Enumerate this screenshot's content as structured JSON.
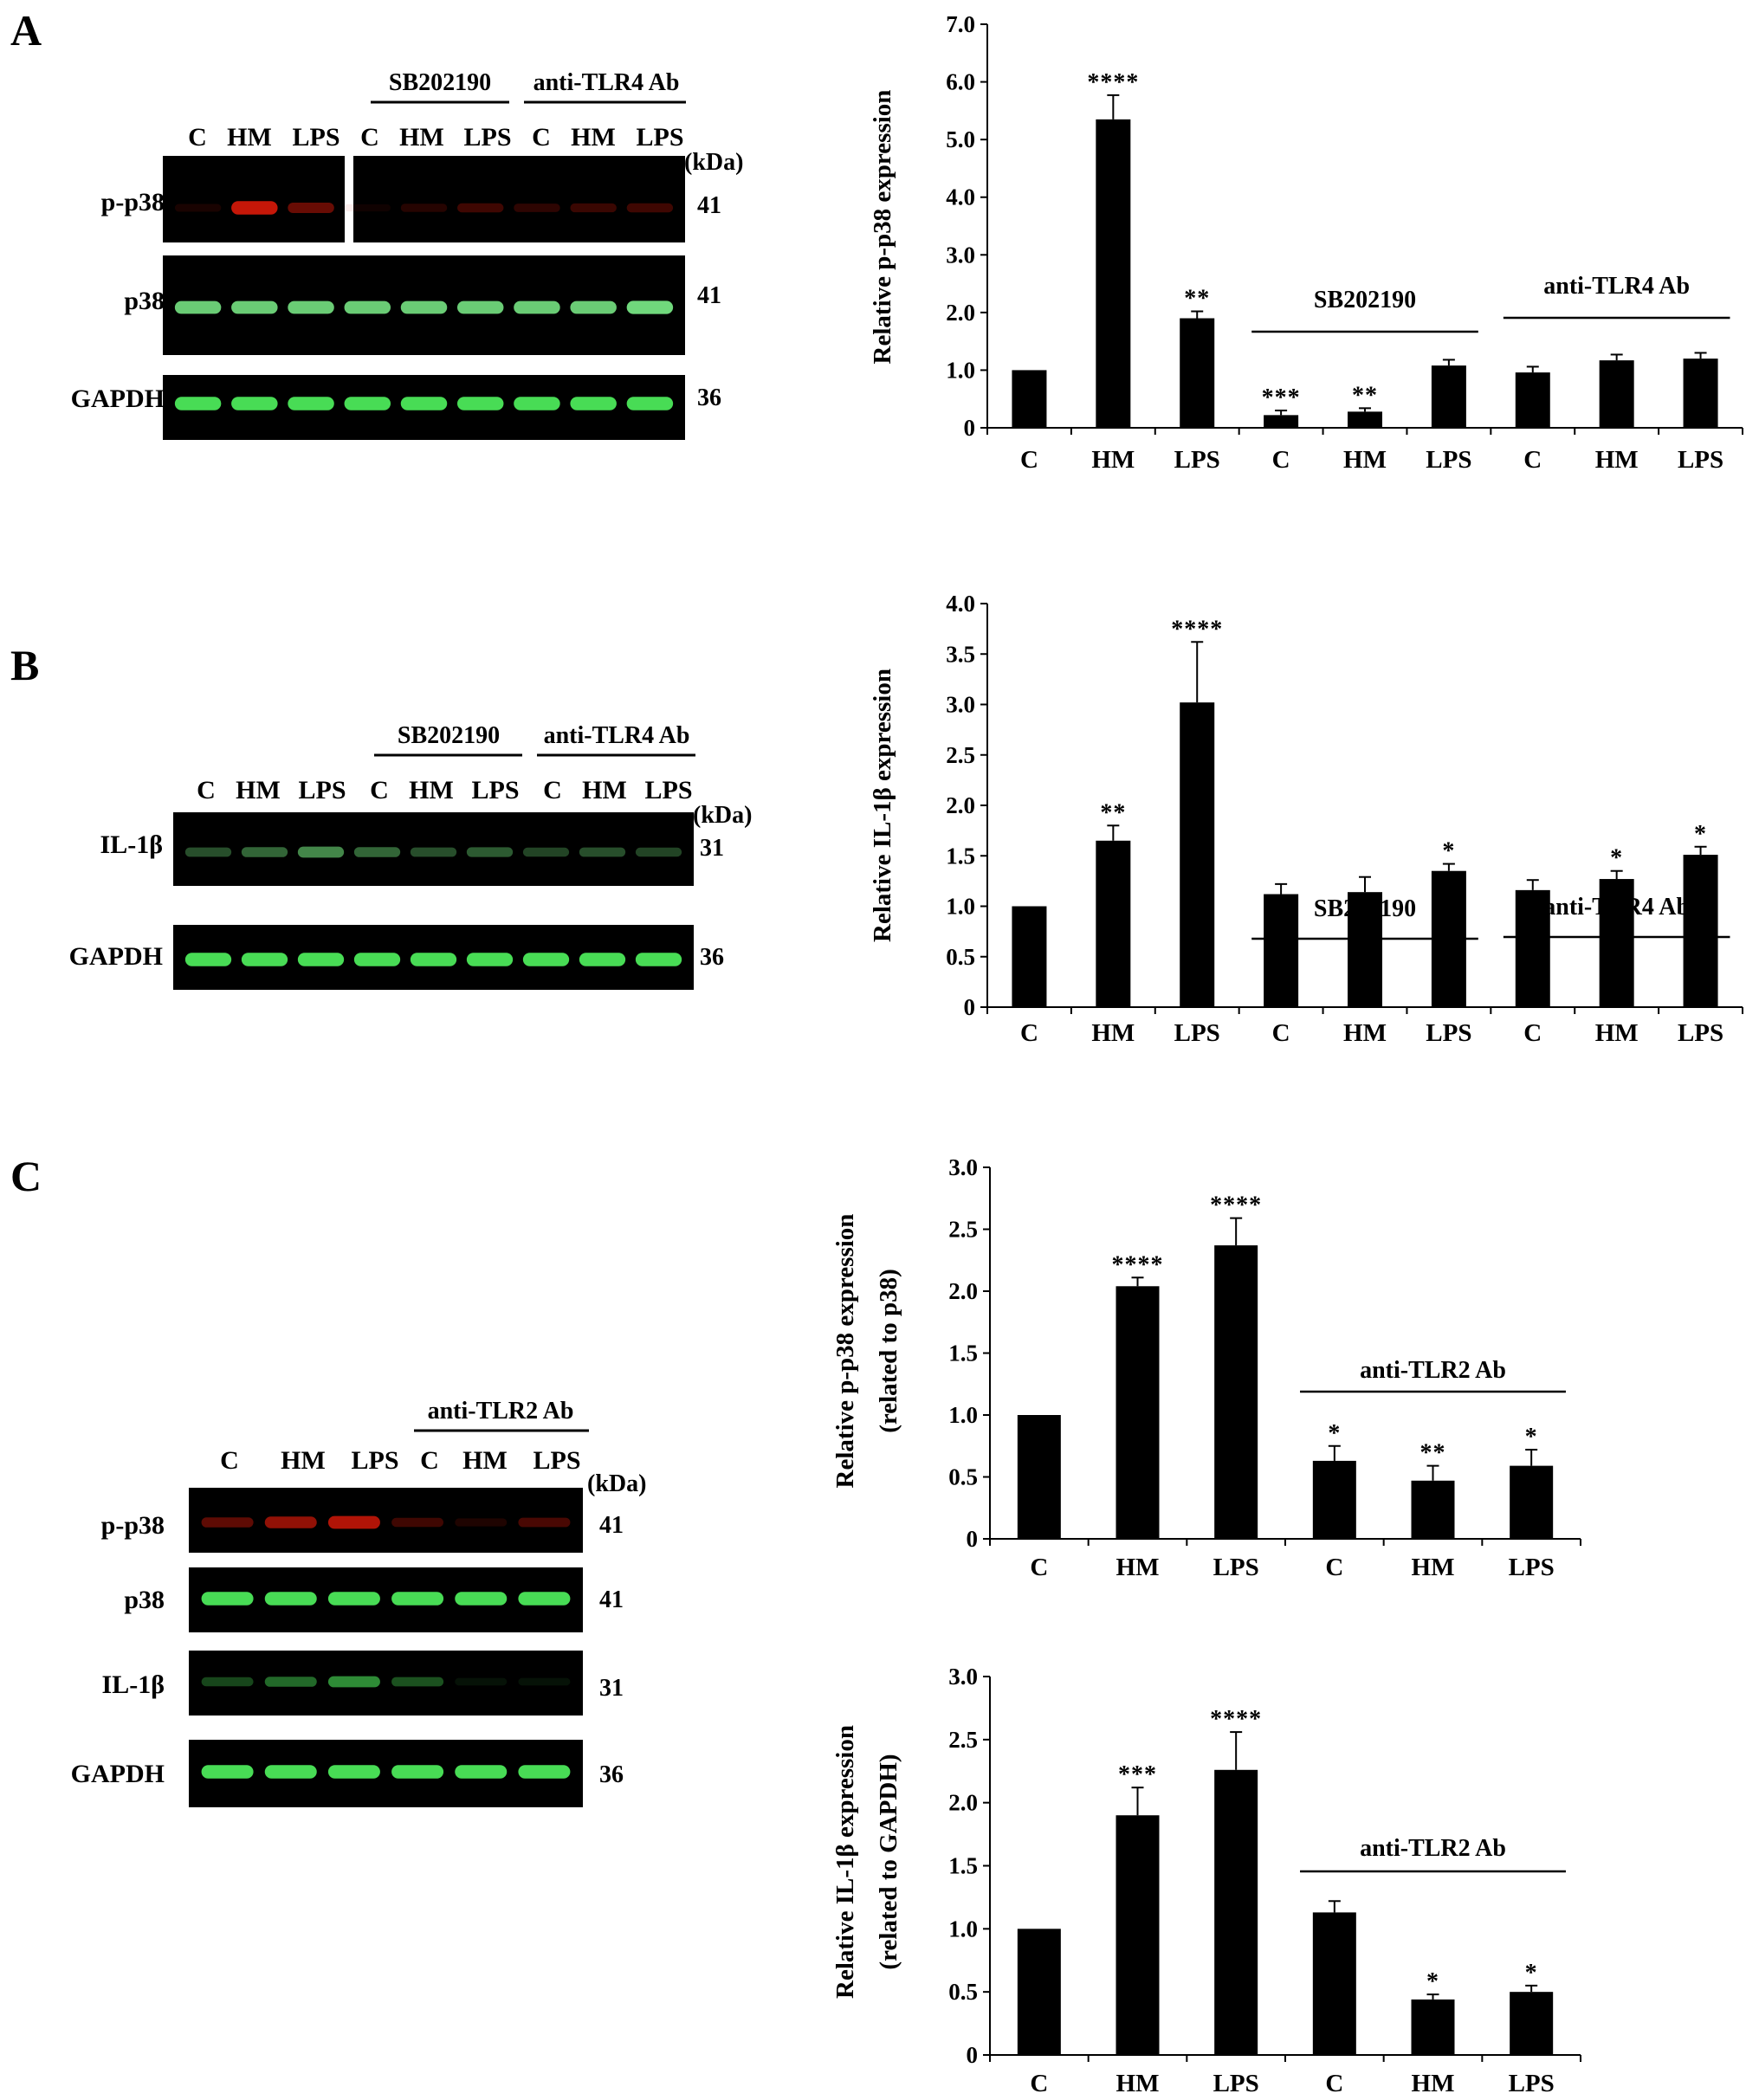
{
  "panel_letters": [
    "A",
    "B",
    "C"
  ],
  "kda_label": "(kDa)",
  "blots": {
    "A": {
      "lanes": [
        "C",
        "HM",
        "LPS",
        "C",
        "HM",
        "LPS",
        "C",
        "HM",
        "LPS"
      ],
      "groups": [
        "SB202190",
        "anti-TLR4 Ab"
      ],
      "rows": [
        {
          "label": "p-p38",
          "kda": "41",
          "color": "#d01808",
          "intensity": [
            0.12,
            0.95,
            0.5,
            0.02,
            0.18,
            0.3,
            0.22,
            0.28,
            0.3
          ]
        },
        {
          "label": "p38",
          "kda": "41",
          "color": "#7cf08a",
          "intensity": [
            0.85,
            0.85,
            0.85,
            0.85,
            0.85,
            0.85,
            0.85,
            0.85,
            0.9
          ]
        },
        {
          "label": "GAPDH",
          "kda": "36",
          "color": "#4ce85a",
          "intensity": [
            0.95,
            0.95,
            0.95,
            0.95,
            0.95,
            0.95,
            0.95,
            0.95,
            0.95
          ]
        }
      ]
    },
    "B": {
      "lanes": [
        "C",
        "HM",
        "LPS",
        "C",
        "HM",
        "LPS",
        "C",
        "HM",
        "LPS"
      ],
      "groups": [
        "SB202190",
        "anti-TLR4 Ab"
      ],
      "rows": [
        {
          "label": "IL-1β",
          "kda": "31",
          "color": "#6fe07a",
          "intensity": [
            0.35,
            0.45,
            0.6,
            0.45,
            0.35,
            0.4,
            0.3,
            0.35,
            0.3
          ]
        },
        {
          "label": "GAPDH",
          "kda": "36",
          "color": "#4ce85a",
          "intensity": [
            0.95,
            0.95,
            0.95,
            0.95,
            0.95,
            0.95,
            0.95,
            0.95,
            0.95
          ]
        }
      ]
    },
    "C": {
      "lanes": [
        "C",
        "HM",
        "LPS",
        "C",
        "HM",
        "LPS"
      ],
      "groups": [
        "anti-TLR2 Ab"
      ],
      "rows": [
        {
          "label": "p-p38",
          "kda": "41",
          "color": "#d01808",
          "intensity": [
            0.45,
            0.7,
            0.85,
            0.3,
            0.15,
            0.35
          ]
        },
        {
          "label": "p38",
          "kda": "41",
          "color": "#4ce85a",
          "intensity": [
            0.95,
            0.95,
            0.95,
            0.95,
            0.95,
            0.95
          ]
        },
        {
          "label": "IL-1β",
          "kda": "31",
          "color": "#4ce85a",
          "intensity": [
            0.3,
            0.45,
            0.6,
            0.35,
            0.08,
            0.08
          ]
        },
        {
          "label": "GAPDH",
          "kda": "36",
          "color": "#4ce85a",
          "intensity": [
            0.95,
            0.95,
            0.95,
            0.95,
            0.95,
            0.95
          ]
        }
      ]
    }
  },
  "chart_data": [
    {
      "type": "bar",
      "panel": "A",
      "title": "",
      "xlabel": "",
      "ylabel": "Relative p-p38 expression",
      "ylabel2": "",
      "categories": [
        "C",
        "HM",
        "LPS",
        "C",
        "HM",
        "LPS",
        "C",
        "HM",
        "LPS"
      ],
      "values": [
        1.0,
        5.35,
        1.9,
        0.22,
        0.28,
        1.08,
        0.96,
        1.17,
        1.2
      ],
      "errors": [
        0,
        0.42,
        0.12,
        0.08,
        0.06,
        0.1,
        0.1,
        0.1,
        0.1
      ],
      "significance": [
        "",
        "****",
        "**",
        "***",
        "**",
        "",
        "",
        "",
        ""
      ],
      "groups": [
        {
          "label": "SB202190",
          "start": 3,
          "end": 5
        },
        {
          "label": "anti-TLR4 Ab",
          "start": 6,
          "end": 8
        }
      ],
      "yticks": [
        "0",
        "1.0",
        "2.0",
        "3.0",
        "4.0",
        "5.0",
        "6.0",
        "7.0"
      ],
      "ylim": [
        0,
        7
      ],
      "grid": false,
      "bar_color": "#000000"
    },
    {
      "type": "bar",
      "panel": "B",
      "title": "",
      "xlabel": "",
      "ylabel": "Relative IL-1β expression",
      "ylabel2": "",
      "categories": [
        "C",
        "HM",
        "LPS",
        "C",
        "HM",
        "LPS",
        "C",
        "HM",
        "LPS"
      ],
      "values": [
        1.0,
        1.65,
        3.02,
        1.12,
        1.14,
        1.35,
        1.16,
        1.27,
        1.51
      ],
      "errors": [
        0,
        0.15,
        0.6,
        0.1,
        0.15,
        0.07,
        0.1,
        0.08,
        0.08
      ],
      "significance": [
        "",
        "**",
        "****",
        "",
        "",
        "*",
        "",
        "*",
        "*"
      ],
      "groups": [
        {
          "label": "SB202190",
          "start": 3,
          "end": 5
        },
        {
          "label": "anti-TLR4 Ab",
          "start": 6,
          "end": 8
        }
      ],
      "yticks": [
        "0",
        "0.5",
        "1.0",
        "1.5",
        "2.0",
        "2.5",
        "3.0",
        "3.5",
        "4.0"
      ],
      "ylim": [
        0,
        4
      ],
      "grid": false,
      "bar_color": "#000000"
    },
    {
      "type": "bar",
      "panel": "C-top",
      "title": "",
      "xlabel": "",
      "ylabel": "Relative p-p38 expression",
      "ylabel2": "(related to p38)",
      "categories": [
        "C",
        "HM",
        "LPS",
        "C",
        "HM",
        "LPS"
      ],
      "values": [
        1.0,
        2.04,
        2.37,
        0.63,
        0.47,
        0.59
      ],
      "errors": [
        0,
        0.07,
        0.22,
        0.12,
        0.12,
        0.13
      ],
      "significance": [
        "",
        "****",
        "****",
        "*",
        "**",
        "*"
      ],
      "groups": [
        {
          "label": "anti-TLR2 Ab",
          "start": 3,
          "end": 5
        }
      ],
      "yticks": [
        "0",
        "0.5",
        "1.0",
        "1.5",
        "2.0",
        "2.5",
        "3.0"
      ],
      "ylim": [
        0,
        3
      ],
      "grid": false,
      "bar_color": "#000000"
    },
    {
      "type": "bar",
      "panel": "C-bottom",
      "title": "",
      "xlabel": "",
      "ylabel": "Relative IL-1β expression",
      "ylabel2": "(related to GAPDH)",
      "categories": [
        "C",
        "HM",
        "LPS",
        "C",
        "HM",
        "LPS"
      ],
      "values": [
        1.0,
        1.9,
        2.26,
        1.13,
        0.44,
        0.5
      ],
      "errors": [
        0,
        0.22,
        0.3,
        0.09,
        0.04,
        0.05
      ],
      "significance": [
        "",
        "***",
        "****",
        "",
        "*",
        "*"
      ],
      "groups": [
        {
          "label": "anti-TLR2 Ab",
          "start": 3,
          "end": 5
        }
      ],
      "yticks": [
        "0",
        "0.5",
        "1.0",
        "1.5",
        "2.0",
        "2.5",
        "3.0"
      ],
      "ylim": [
        0,
        3
      ],
      "grid": false,
      "bar_color": "#000000"
    }
  ]
}
